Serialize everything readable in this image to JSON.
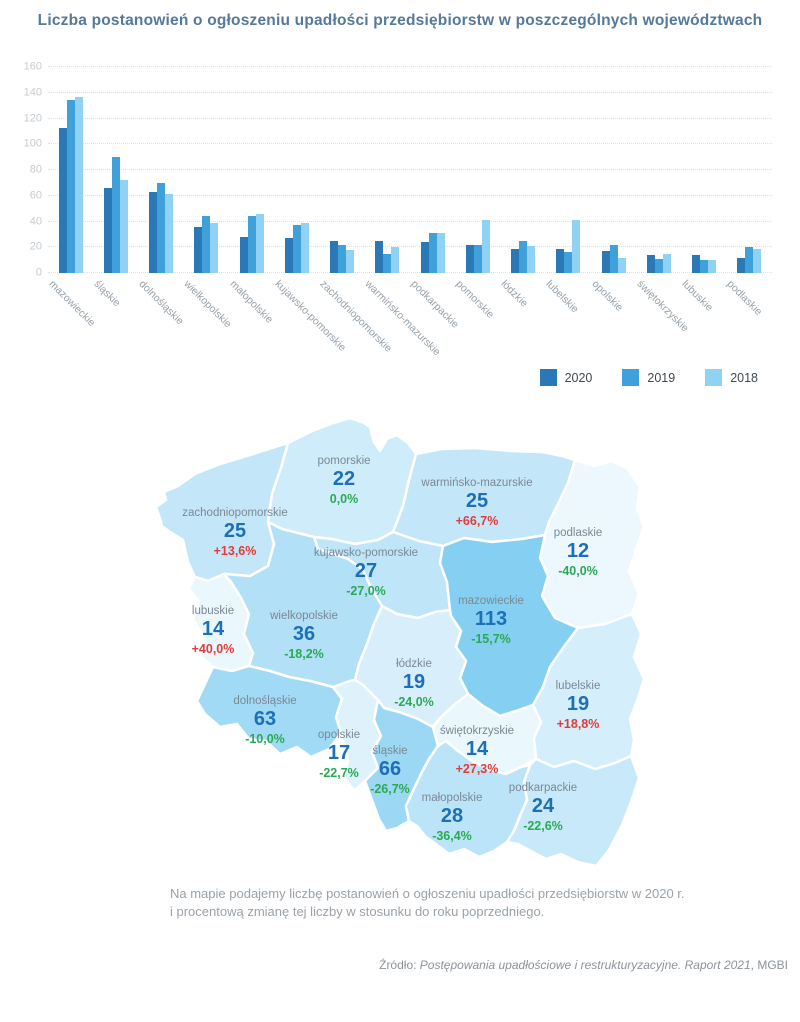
{
  "title": "Liczba postanowień o ogłoszeniu upadłości przedsiębiorstw w poszczególnych województwach",
  "legend": [
    {
      "label": "2020",
      "color": "#2a78b6"
    },
    {
      "label": "2019",
      "color": "#3fa0da"
    },
    {
      "label": "2018",
      "color": "#8fd2f4"
    }
  ],
  "chart_data": {
    "type": "bar",
    "categories": [
      "mazowieckie",
      "śląskie",
      "dolnośląskie",
      "wielkopolskie",
      "małopolskie",
      "kujawsko-pomorskie",
      "zachodniopomorskie",
      "warmińsko-mazurskie",
      "podkarpackie",
      "pomorskie",
      "łódzkie",
      "lubelskie",
      "opolskie",
      "świętokrzyskie",
      "lubuskie",
      "podlaskie"
    ],
    "series": [
      {
        "name": "2020",
        "color": "#2a78b6",
        "values": [
          113,
          66,
          63,
          36,
          28,
          27,
          25,
          25,
          24,
          22,
          19,
          19,
          17,
          14,
          14,
          12
        ]
      },
      {
        "name": "2019",
        "color": "#3fa0da",
        "values": [
          134,
          90,
          70,
          44,
          44,
          37,
          22,
          15,
          31,
          22,
          25,
          16,
          22,
          11,
          10,
          20
        ]
      },
      {
        "name": "2018",
        "color": "#8fd2f4",
        "values": [
          137,
          72,
          61,
          39,
          46,
          39,
          18,
          20,
          31,
          41,
          21,
          41,
          12,
          15,
          10,
          19
        ]
      }
    ],
    "title": "Liczba postanowień o ogłoszeniu upadłości przedsiębiorstw w poszczególnych województwach",
    "xlabel": "",
    "ylabel": "",
    "ylim": [
      0,
      160
    ],
    "ytick_step": 20,
    "grid": true,
    "legend_position": "bottom-right"
  },
  "map": {
    "value_color": "#1d6fb8",
    "up_color": "#e23b3b",
    "down_color": "#2aa954",
    "zero_color": "#2aa954",
    "regions": [
      {
        "id": "zachodniopomorskie",
        "name": "zachodniopomorskie",
        "value": "25",
        "change": "+13,6%",
        "direction": "up",
        "fill": "#c3e7f9"
      },
      {
        "id": "pomorskie",
        "name": "pomorskie",
        "value": "22",
        "change": "0,0%",
        "direction": "zero",
        "fill": "#cfecfa"
      },
      {
        "id": "warminsko-mazurskie",
        "name": "warmińsko-mazurskie",
        "value": "25",
        "change": "+66,7%",
        "direction": "up",
        "fill": "#c3e7f9"
      },
      {
        "id": "podlaskie",
        "name": "podlaskie",
        "value": "12",
        "change": "-40,0%",
        "direction": "down",
        "fill": "#edf8fe"
      },
      {
        "id": "kujawsko-pomorskie",
        "name": "kujawsko-pomorskie",
        "value": "27",
        "change": "-27,0%",
        "direction": "down",
        "fill": "#bfe5f8"
      },
      {
        "id": "mazowieckie",
        "name": "mazowieckie",
        "value": "113",
        "change": "-15,7%",
        "direction": "down",
        "fill": "#85cff2"
      },
      {
        "id": "lubuskie",
        "name": "lubuskie",
        "value": "14",
        "change": "+40,0%",
        "direction": "up",
        "fill": "#eaf7fd"
      },
      {
        "id": "wielkopolskie",
        "name": "wielkopolskie",
        "value": "36",
        "change": "-18,2%",
        "direction": "down",
        "fill": "#b2e0f7"
      },
      {
        "id": "lodzkie",
        "name": "łódzkie",
        "value": "19",
        "change": "-24,0%",
        "direction": "down",
        "fill": "#d8effb"
      },
      {
        "id": "lubelskie",
        "name": "lubelskie",
        "value": "19",
        "change": "+18,8%",
        "direction": "up",
        "fill": "#d4eefb"
      },
      {
        "id": "dolnoslaskie",
        "name": "dolnośląskie",
        "value": "63",
        "change": "-10,0%",
        "direction": "down",
        "fill": "#a0daf5"
      },
      {
        "id": "opolskie",
        "name": "opolskie",
        "value": "17",
        "change": "-22,7%",
        "direction": "down",
        "fill": "#def2fc"
      },
      {
        "id": "slaskie",
        "name": "śląskie",
        "value": "66",
        "change": "-26,7%",
        "direction": "down",
        "fill": "#9cd8f4"
      },
      {
        "id": "swietokrzyskie",
        "name": "świętokrzyskie",
        "value": "14",
        "change": "+27,3%",
        "direction": "up",
        "fill": "#eaf7fd"
      },
      {
        "id": "malopolskie",
        "name": "małopolskie",
        "value": "28",
        "change": "-36,4%",
        "direction": "down",
        "fill": "#bce4f8"
      },
      {
        "id": "podkarpackie",
        "name": "podkarpackie",
        "value": "24",
        "change": "-22,6%",
        "direction": "down",
        "fill": "#c7e9f9"
      }
    ]
  },
  "caption": {
    "line1": "Na mapie podajemy liczbę postanowień o ogłoszeniu upadłości przedsiębiorstw w 2020 r.",
    "line2": "i procentową zmianę tej liczby w stosunku do roku poprzedniego."
  },
  "source": {
    "prefix": "Źródło: ",
    "italic": "Postępowania upadłościowe i restrukturyzacyjne. Raport 2021",
    "suffix": ", MGBI"
  }
}
